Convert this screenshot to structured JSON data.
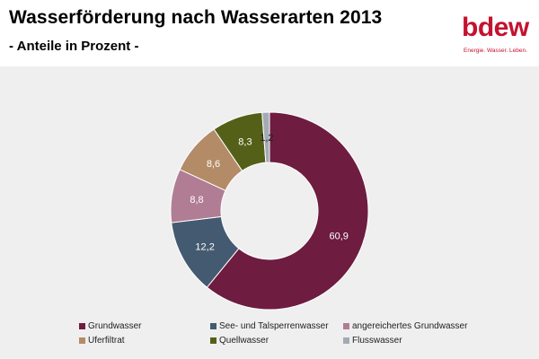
{
  "header": {
    "title": "Wasserförderung nach Wasserarten 2013",
    "subtitle": "- Anteile in Prozent -"
  },
  "logo": {
    "wordmark": "bdew",
    "tagline": "Energie. Wasser. Leben.",
    "color": "#c4122f"
  },
  "chart_data": {
    "type": "pie",
    "variant": "donut",
    "title": "Wasserförderung nach Wasserarten 2013",
    "subtitle": "- Anteile in Prozent -",
    "legend_position": "bottom",
    "categories": [
      "Grundwasser",
      "See- und Talsperrenwasser",
      "angereichertes Grundwasser",
      "Uferfiltrat",
      "Quellwasser",
      "Flusswasser"
    ],
    "values": [
      60.9,
      12.2,
      8.8,
      8.6,
      8.3,
      1.2
    ],
    "labels": [
      "60,9",
      "12,2",
      "8,8",
      "8,6",
      "8,3",
      "1,2"
    ],
    "colors": [
      "#6e1c40",
      "#445a70",
      "#b07d95",
      "#b38b67",
      "#546018",
      "#a3aab4"
    ],
    "label_colors": [
      "#ffffff",
      "#ffffff",
      "#ffffff",
      "#ffffff",
      "#ffffff",
      "#222222"
    ]
  }
}
